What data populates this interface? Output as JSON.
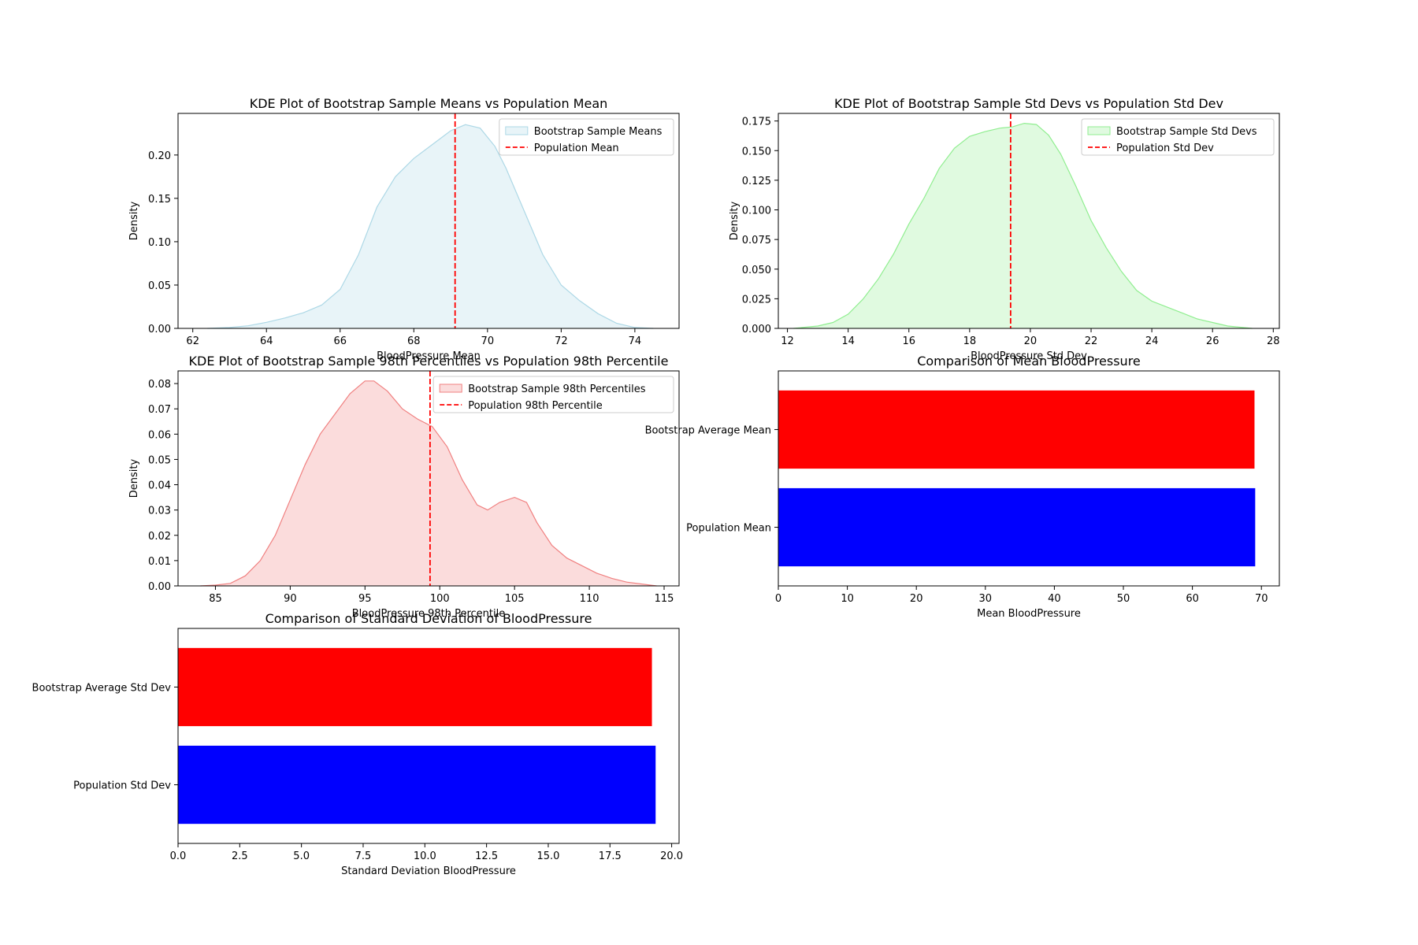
{
  "chart_data": [
    {
      "type": "area",
      "title": "KDE Plot of Bootstrap Sample Means vs Population Mean",
      "xlabel": "BloodPressure Mean",
      "ylabel": "Density",
      "xlim": [
        61.6,
        75.2
      ],
      "ylim": [
        0,
        0.248
      ],
      "xticks": [
        62,
        64,
        66,
        68,
        70,
        72,
        74
      ],
      "yticks": [
        0.0,
        0.05,
        0.1,
        0.15,
        0.2
      ],
      "ytick_labels": [
        "0.00",
        "0.05",
        "0.10",
        "0.15",
        "0.20"
      ],
      "legend": "top-right",
      "series": [
        {
          "name": "Bootstrap Sample Means",
          "x": [
            62.4,
            63.0,
            63.5,
            64.0,
            64.5,
            65.0,
            65.5,
            66.0,
            66.5,
            67.0,
            67.5,
            68.0,
            68.5,
            69.0,
            69.4,
            69.8,
            70.2,
            70.5,
            71.0,
            71.5,
            72.0,
            72.5,
            73.0,
            73.5,
            74.0,
            74.5
          ],
          "y": [
            0.0,
            0.001,
            0.003,
            0.007,
            0.012,
            0.018,
            0.027,
            0.045,
            0.085,
            0.14,
            0.175,
            0.196,
            0.212,
            0.228,
            0.235,
            0.231,
            0.21,
            0.185,
            0.135,
            0.085,
            0.05,
            0.032,
            0.017,
            0.006,
            0.001,
            0.0
          ],
          "color": "#add8e6"
        }
      ],
      "reference_lines": [
        {
          "name": "Population Mean",
          "x": 69.12,
          "color": "#ff0000",
          "style": "dashed"
        }
      ]
    },
    {
      "type": "area",
      "title": "KDE Plot of Bootstrap Sample Std Devs vs Population Std Dev",
      "xlabel": "BloodPressure Std Dev",
      "ylabel": "Density",
      "xlim": [
        11.7,
        28.2
      ],
      "ylim": [
        0,
        0.1814
      ],
      "xticks": [
        12,
        14,
        16,
        18,
        20,
        22,
        24,
        26,
        28
      ],
      "yticks": [
        0,
        0.025,
        0.05,
        0.075,
        0.1,
        0.125,
        0.15,
        0.175
      ],
      "ytick_labels": [
        "0.000",
        "0.025",
        "0.050",
        "0.075",
        "0.100",
        "0.125",
        "0.150",
        "0.175"
      ],
      "legend": "top-right",
      "series": [
        {
          "name": "Bootstrap Sample Std Devs",
          "x": [
            12.2,
            13.0,
            13.5,
            14.0,
            14.5,
            15.0,
            15.5,
            16.0,
            16.5,
            17.0,
            17.5,
            18.0,
            18.5,
            19.0,
            19.4,
            19.8,
            20.2,
            20.6,
            21.0,
            21.5,
            22.0,
            22.5,
            23.0,
            23.5,
            24.0,
            24.5,
            25.0,
            25.5,
            26.0,
            26.5,
            27.3
          ],
          "y": [
            0.0,
            0.002,
            0.005,
            0.012,
            0.025,
            0.042,
            0.063,
            0.088,
            0.11,
            0.135,
            0.152,
            0.162,
            0.166,
            0.169,
            0.17,
            0.173,
            0.172,
            0.163,
            0.147,
            0.12,
            0.091,
            0.068,
            0.048,
            0.032,
            0.023,
            0.018,
            0.013,
            0.008,
            0.005,
            0.002,
            0.0
          ],
          "color": "#90ee90"
        }
      ],
      "reference_lines": [
        {
          "name": "Population Std Dev",
          "x": 19.35,
          "color": "#ff0000",
          "style": "dashed"
        }
      ]
    },
    {
      "type": "area",
      "title": "KDE Plot of Bootstrap Sample 98th Percentiles vs Population 98th Percentile",
      "xlabel": "BloodPressure 98th Percentile",
      "ylabel": "Density",
      "xlim": [
        82.5,
        116.0
      ],
      "ylim": [
        0,
        0.085
      ],
      "xticks": [
        85,
        90,
        95,
        100,
        105,
        110,
        115
      ],
      "yticks": [
        0,
        0.01,
        0.02,
        0.03,
        0.04,
        0.05,
        0.06,
        0.07,
        0.08
      ],
      "ytick_labels": [
        "0.00",
        "0.01",
        "0.02",
        "0.03",
        "0.04",
        "0.05",
        "0.06",
        "0.07",
        "0.08"
      ],
      "legend": "top-right",
      "series": [
        {
          "name": "Bootstrap Sample 98th Percentiles",
          "x": [
            84.0,
            85.0,
            86.0,
            87.0,
            88.0,
            89.0,
            90.0,
            91.0,
            92.0,
            93.0,
            94.0,
            95.0,
            95.6,
            96.5,
            97.5,
            98.5,
            99.5,
            100.5,
            101.5,
            102.5,
            103.2,
            104.0,
            105.0,
            105.8,
            106.5,
            107.5,
            108.5,
            109.5,
            110.5,
            111.5,
            112.5,
            114.5
          ],
          "y": [
            0.0,
            0.0003,
            0.001,
            0.004,
            0.01,
            0.02,
            0.034,
            0.048,
            0.06,
            0.068,
            0.076,
            0.081,
            0.081,
            0.077,
            0.07,
            0.066,
            0.063,
            0.055,
            0.042,
            0.032,
            0.03,
            0.033,
            0.035,
            0.033,
            0.025,
            0.016,
            0.011,
            0.008,
            0.005,
            0.003,
            0.0015,
            0.0
          ],
          "color": "#f08080"
        }
      ],
      "reference_lines": [
        {
          "name": "Population 98th Percentile",
          "x": 99.35,
          "color": "#ff0000",
          "style": "dashed"
        }
      ]
    },
    {
      "type": "bar",
      "orientation": "horizontal",
      "title": "Comparison of Mean BloodPressure",
      "xlabel": "Mean BloodPressure",
      "ylabel": "",
      "categories": [
        "Bootstrap Average Mean",
        "Population Mean"
      ],
      "values": [
        69.0,
        69.1
      ],
      "colors": [
        "#ff0000",
        "#0000ff"
      ],
      "xlim": [
        0,
        72.6
      ],
      "xticks": [
        0,
        10,
        20,
        30,
        40,
        50,
        60,
        70
      ],
      "xtick_labels": [
        "0",
        "10",
        "20",
        "30",
        "40",
        "50",
        "60",
        "70"
      ]
    },
    {
      "type": "bar",
      "orientation": "horizontal",
      "title": "Comparison of Standard Deviation of BloodPressure",
      "xlabel": "Standard Deviation BloodPressure",
      "ylabel": "",
      "categories": [
        "Bootstrap Average Std Dev",
        "Population Std Dev"
      ],
      "values": [
        19.2,
        19.35
      ],
      "colors": [
        "#ff0000",
        "#0000ff"
      ],
      "xlim": [
        0,
        20.3
      ],
      "xticks": [
        0,
        2.5,
        5,
        7.5,
        10,
        12.5,
        15,
        17.5,
        20
      ],
      "xtick_labels": [
        "0.0",
        "2.5",
        "5.0",
        "7.5",
        "10.0",
        "12.5",
        "15.0",
        "17.5",
        "20.0"
      ]
    }
  ]
}
